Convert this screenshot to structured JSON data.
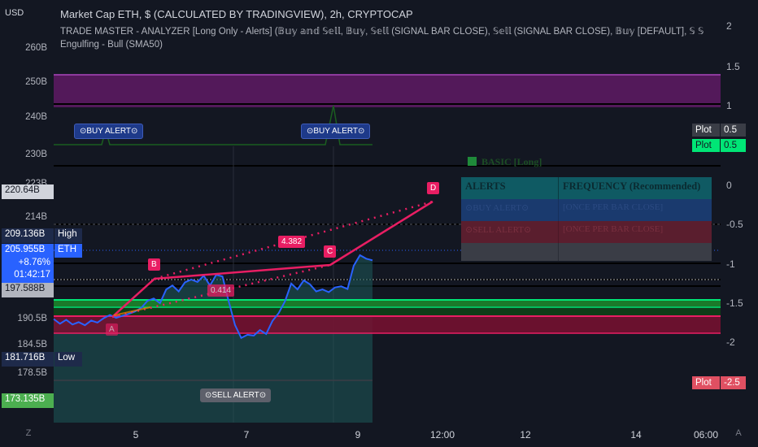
{
  "header": {
    "title": "Market Cap ETH, $ (CALCULATED BY TRADINGVIEW), 2h, CRYPTOCAP",
    "indicator": "TRADE MASTER - ANALYZER [Long Only - Alerts] (𝔹𝕦𝕪 𝕒𝕟𝕕 𝕊𝕖𝕝𝕝, 𝔹𝕦𝕪, 𝕊𝕖𝕝𝕝 (SIGNAL BAR CLOSE), 𝕊𝕖𝕝𝕝 (SIGNAL BAR CLOSE), 𝔹𝕦𝕪 [DEFAULT], 𝕊 𝕊",
    "pattern": "Engulfing - Bull (SMA50)"
  },
  "left_axis": {
    "currency": "USD",
    "ticks": [
      "260B",
      "250B",
      "240B",
      "230B",
      "223B",
      "214B",
      "190.5B",
      "184.5B",
      "178.5B"
    ],
    "badges": {
      "level_1": "220.64B",
      "high_value": "209.136B",
      "high_label": "High",
      "price": "205.955B",
      "symbol": "ETH",
      "change": "+8.76%",
      "countdown": "01:42:17",
      "level_2": "197.588B",
      "low_value": "181.716B",
      "low_label": "Low",
      "level_3": "173.135B"
    }
  },
  "right_axis": {
    "ticks": [
      "2",
      "1.5",
      "1",
      "0.5",
      "0",
      "-0.5",
      "-1",
      "-1.5",
      "-2"
    ],
    "plot_badges": [
      {
        "label": "Plot",
        "value": "0.5",
        "color": "#3a3d46"
      },
      {
        "label": "Plot",
        "value": "0.5",
        "color": "#00e676"
      },
      {
        "label": "Plot",
        "value": "-2.5",
        "color": "#f23645"
      }
    ]
  },
  "x_axis": {
    "ticks": [
      "5",
      "7",
      "9",
      "12:00",
      "12",
      "14",
      "06:00"
    ]
  },
  "corners": {
    "left": "Z",
    "right": "A"
  },
  "alerts": {
    "buy": "⊙BUY ALERT⊙",
    "sell": "⊙SELL ALERT⊙"
  },
  "pattern_points": [
    "A",
    "B",
    "C",
    "D"
  ],
  "pattern_values": {
    "first": "0.414",
    "second": "4.382"
  },
  "table": {
    "title": "BASIC [Long]",
    "headers": [
      "ALERTS",
      "FREQUENCY (Recommended)"
    ],
    "rows": [
      [
        "⊙BUY ALERT⊙",
        "[ONCE PER BAR CLOSE]"
      ],
      [
        "⊙SELL ALERT⊙",
        "[ONCE PER BAR CLOSE]"
      ]
    ],
    "colors": {
      "header": "#0f5a63",
      "buy": "#1a3a6e",
      "sell": "#5a1e2e",
      "foot": "#3a3d46"
    }
  },
  "chart_data": {
    "type": "line",
    "title": "Market Cap ETH, $ (CALCULATED BY TRADINGVIEW), 2h, CRYPTOCAP",
    "xlabel": "",
    "ylabel": "USD",
    "unit": "B",
    "x_ticks": [
      "5",
      "7",
      "9",
      "12:00",
      "12",
      "14",
      "06:00"
    ],
    "series": [
      {
        "name": "ETH",
        "color": "#2962ff",
        "values": [
          191.0,
          189.8,
          190.8,
          189.6,
          190.2,
          189.4,
          190.6,
          190.1,
          191.2,
          192.0,
          191.3,
          191.8,
          192.3,
          192.9,
          193.8,
          195.6,
          196.2,
          195.0,
          198.5,
          199.5,
          198.0,
          200.3,
          201.0,
          200.4,
          202.0,
          199.5,
          202.2,
          201.8,
          195.5,
          189.5,
          186.2,
          187.0,
          186.8,
          188.2,
          187.2,
          190.5,
          192.5,
          195.5,
          200.0,
          198.5,
          200.8,
          199.8,
          198.0,
          198.5,
          197.8,
          199.0,
          199.3,
          198.6,
          204.5,
          207.2,
          206.3,
          205.9
        ]
      }
    ],
    "pattern": {
      "labels": [
        "A",
        "B",
        "C",
        "D"
      ],
      "values": [
        188.7,
        199.3,
        201.3,
        218.7
      ],
      "ratios": [
        "0.414",
        "4.382"
      ]
    },
    "levels": [
      220.64,
      209.136,
      205.955,
      197.588,
      181.716,
      173.135
    ],
    "ylim": [
      170,
      264
    ]
  }
}
